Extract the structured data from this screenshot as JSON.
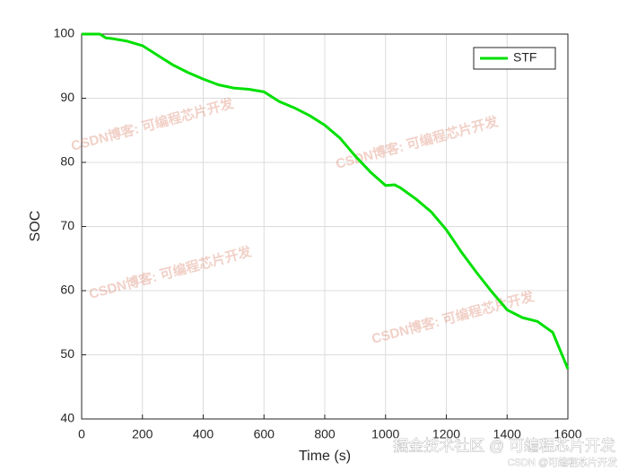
{
  "chart_data": {
    "type": "line",
    "xlabel": "Time (s)",
    "ylabel": "SOC",
    "x": [
      0,
      60,
      80,
      100,
      150,
      200,
      250,
      300,
      350,
      400,
      450,
      500,
      550,
      600,
      650,
      700,
      750,
      800,
      850,
      900,
      950,
      1000,
      1030,
      1050,
      1100,
      1150,
      1200,
      1250,
      1300,
      1350,
      1400,
      1450,
      1500,
      1550,
      1600
    ],
    "series": [
      {
        "name": "STF",
        "color": "#00e000",
        "values": [
          100,
          100,
          99.4,
          99.3,
          98.9,
          98.2,
          96.7,
          95.2,
          94,
          93,
          92.1,
          91.6,
          91.4,
          91,
          89.5,
          88.5,
          87.3,
          85.8,
          83.8,
          81,
          78.5,
          76.4,
          76.5,
          76,
          74.3,
          72.3,
          69.5,
          66,
          62.8,
          59.8,
          57,
          55.8,
          55.2,
          53.5,
          47.8
        ]
      }
    ],
    "xlim": [
      0,
      1600
    ],
    "xticks": [
      0,
      200,
      400,
      600,
      800,
      1000,
      1200,
      1400,
      1600
    ],
    "ylim": [
      40,
      100
    ],
    "yticks": [
      40,
      50,
      60,
      70,
      80,
      90,
      100
    ],
    "grid": true,
    "legend": "top-right"
  },
  "watermarks": [
    "CSDN博客: 可编程芯片开发",
    "CSDN博客: 可编程芯片开发",
    "CSDN博客: 可编程芯片开发",
    "CSDN博客: 可编程芯片开发",
    "掘金技术社区 @ 可编程芯片开发",
    "CSDN @可编程芯片开发"
  ]
}
